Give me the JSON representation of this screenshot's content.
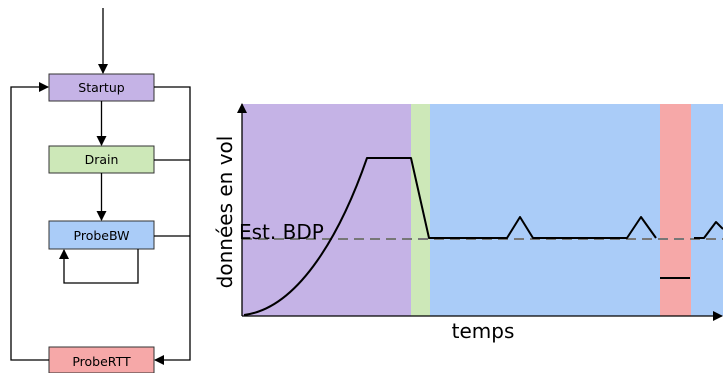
{
  "flowchart": {
    "states": [
      {
        "id": "startup",
        "label": "Startup",
        "color": "#c5b3e6"
      },
      {
        "id": "drain",
        "label": "Drain",
        "color": "#cde8b8"
      },
      {
        "id": "probebw",
        "label": "ProbeBW",
        "color": "#aaccf8"
      },
      {
        "id": "probertt",
        "label": "ProbeRTT",
        "color": "#f6a8a8"
      }
    ]
  },
  "timeline": {
    "ylabel": "données en vol",
    "xlabel": "temps",
    "bdp_label": "Est. BDP",
    "phase_colors": {
      "startup": "#c5b3e6",
      "drain": "#cde8b8",
      "probebw": "#aaccf8",
      "probertt": "#f6a8a8"
    }
  }
}
